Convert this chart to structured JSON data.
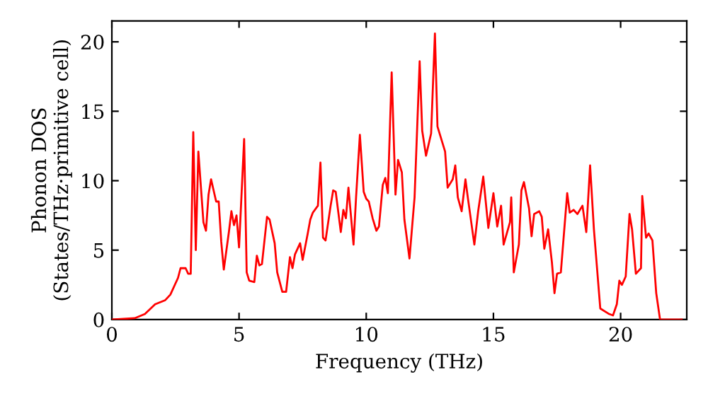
{
  "chart_data": {
    "type": "line",
    "xlabel": "Frequency (THz)",
    "ylabel": "Phonon DOS\n(States/THz·primitive cell)",
    "xlim": [
      0,
      22.6
    ],
    "ylim": [
      0,
      21.5
    ],
    "xticks": [
      0,
      5,
      10,
      15,
      20
    ],
    "yticks": [
      0,
      5,
      10,
      15,
      20
    ],
    "grid": false,
    "legend": false,
    "marker": "none",
    "line_style": "solid",
    "series": [
      {
        "color": "#ff0000",
        "x": [
          0,
          0.9,
          1.3,
          1.7,
          2.1,
          2.3,
          2.6,
          2.7,
          2.9,
          3.0,
          3.1,
          3.2,
          3.3,
          3.4,
          3.6,
          3.7,
          3.8,
          3.9,
          4.1,
          4.2,
          4.3,
          4.4,
          4.6,
          4.7,
          4.8,
          4.9,
          5.0,
          5.2,
          5.3,
          5.4,
          5.6,
          5.7,
          5.8,
          5.9,
          6.1,
          6.2,
          6.4,
          6.5,
          6.7,
          6.85,
          7.0,
          7.1,
          7.2,
          7.4,
          7.5,
          7.7,
          7.8,
          7.9,
          8.1,
          8.2,
          8.3,
          8.4,
          8.6,
          8.7,
          8.8,
          9.0,
          9.1,
          9.2,
          9.3,
          9.5,
          9.6,
          9.75,
          9.9,
          10.0,
          10.1,
          10.25,
          10.4,
          10.5,
          10.65,
          10.75,
          10.85,
          11.0,
          11.15,
          11.25,
          11.4,
          11.5,
          11.7,
          11.9,
          12.1,
          12.2,
          12.35,
          12.55,
          12.7,
          12.8,
          13.1,
          13.2,
          13.4,
          13.5,
          13.6,
          13.75,
          13.9,
          14.0,
          14.25,
          14.4,
          14.6,
          14.8,
          15.0,
          15.15,
          15.3,
          15.4,
          15.65,
          15.7,
          15.8,
          16.0,
          16.1,
          16.2,
          16.4,
          16.5,
          16.6,
          16.8,
          16.9,
          17.0,
          17.15,
          17.3,
          17.4,
          17.5,
          17.65,
          17.9,
          18.0,
          18.15,
          18.3,
          18.5,
          18.65,
          18.8,
          18.95,
          19.2,
          19.55,
          19.7,
          19.85,
          19.95,
          20.05,
          20.2,
          20.35,
          20.45,
          20.6,
          20.8,
          20.85,
          21.0,
          21.1,
          21.25,
          21.4,
          21.55,
          22.4
        ],
        "values": [
          0,
          0.1,
          0.4,
          1.1,
          1.4,
          1.8,
          3.0,
          3.7,
          3.7,
          3.3,
          3.3,
          13.5,
          5.0,
          12.1,
          7.0,
          6.4,
          9.0,
          10.1,
          8.5,
          8.5,
          5.6,
          3.6,
          6.3,
          7.8,
          6.8,
          7.5,
          5.2,
          13.0,
          3.4,
          2.8,
          2.7,
          4.6,
          3.9,
          4.0,
          7.4,
          7.2,
          5.5,
          3.4,
          2.0,
          2.0,
          4.5,
          3.7,
          4.7,
          5.5,
          4.3,
          6.2,
          7.2,
          7.7,
          8.2,
          11.3,
          5.9,
          5.7,
          8.2,
          9.3,
          9.2,
          6.3,
          7.9,
          7.3,
          9.5,
          5.4,
          8.8,
          13.3,
          9.2,
          8.7,
          8.5,
          7.3,
          6.4,
          6.7,
          9.7,
          10.2,
          9.1,
          17.8,
          9.0,
          11.5,
          10.6,
          7.2,
          4.4,
          8.8,
          18.6,
          13.6,
          11.8,
          13.4,
          20.6,
          13.9,
          12.1,
          9.5,
          10.1,
          11.1,
          8.8,
          7.8,
          10.1,
          8.7,
          5.4,
          7.8,
          10.3,
          6.6,
          9.1,
          6.7,
          8.2,
          5.4,
          7.0,
          8.8,
          3.4,
          5.4,
          9.3,
          9.9,
          8.0,
          6.0,
          7.6,
          7.8,
          7.4,
          5.1,
          6.5,
          4.1,
          1.9,
          3.3,
          3.4,
          9.1,
          7.7,
          7.9,
          7.6,
          8.2,
          6.3,
          11.1,
          6.5,
          0.8,
          0.4,
          0.3,
          1.1,
          2.8,
          2.5,
          3.1,
          7.6,
          6.5,
          3.3,
          3.7,
          8.9,
          5.9,
          6.2,
          5.7,
          1.9,
          0,
          0
        ]
      }
    ]
  }
}
